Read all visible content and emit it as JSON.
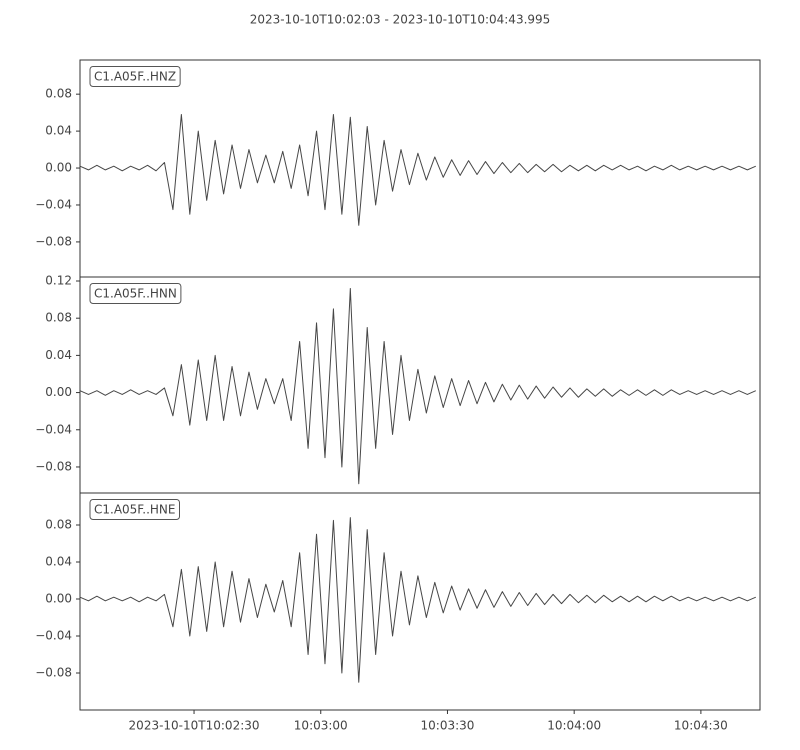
{
  "chart_data": {
    "type": "line",
    "title": "2023-10-10T10:02:03  -  2023-10-10T10:04:43.995",
    "color": "#474747",
    "xlim": [
      "2023-10-10T10:02:03",
      "2023-10-10T10:04:43.995"
    ],
    "xticks": [
      "2023-10-10T10:02:30",
      {
        "value": "2023-10-10T10:03:00",
        "label": "10:03:00"
      },
      {
        "value": "2023-10-10T10:03:30",
        "label": "10:03:30"
      },
      {
        "value": "2023-10-10T10:04:00",
        "label": "10:04:00"
      },
      {
        "value": "2023-10-10T10:04:30",
        "label": "10:04:30"
      }
    ],
    "x": [
      "2023-10-10T10:02:03",
      "2023-10-10T10:02:05",
      "2023-10-10T10:02:07",
      "2023-10-10T10:02:09",
      "2023-10-10T10:02:11",
      "2023-10-10T10:02:13",
      "2023-10-10T10:02:15",
      "2023-10-10T10:02:17",
      "2023-10-10T10:02:19",
      "2023-10-10T10:02:21",
      "2023-10-10T10:02:23",
      "2023-10-10T10:02:25",
      "2023-10-10T10:02:27",
      "2023-10-10T10:02:29",
      "2023-10-10T10:02:31",
      "2023-10-10T10:02:33",
      "2023-10-10T10:02:35",
      "2023-10-10T10:02:37",
      "2023-10-10T10:02:39",
      "2023-10-10T10:02:41",
      "2023-10-10T10:02:43",
      "2023-10-10T10:02:45",
      "2023-10-10T10:02:47",
      "2023-10-10T10:02:49",
      "2023-10-10T10:02:51",
      "2023-10-10T10:02:53",
      "2023-10-10T10:02:55",
      "2023-10-10T10:02:57",
      "2023-10-10T10:02:59",
      "2023-10-10T10:03:01",
      "2023-10-10T10:03:03",
      "2023-10-10T10:03:05",
      "2023-10-10T10:03:07",
      "2023-10-10T10:03:09",
      "2023-10-10T10:03:11",
      "2023-10-10T10:03:13",
      "2023-10-10T10:03:15",
      "2023-10-10T10:03:17",
      "2023-10-10T10:03:19",
      "2023-10-10T10:03:21",
      "2023-10-10T10:03:23",
      "2023-10-10T10:03:25",
      "2023-10-10T10:03:27",
      "2023-10-10T10:03:29",
      "2023-10-10T10:03:31",
      "2023-10-10T10:03:33",
      "2023-10-10T10:03:35",
      "2023-10-10T10:03:37",
      "2023-10-10T10:03:39",
      "2023-10-10T10:03:41",
      "2023-10-10T10:03:43",
      "2023-10-10T10:03:45",
      "2023-10-10T10:03:47",
      "2023-10-10T10:03:49",
      "2023-10-10T10:03:51",
      "2023-10-10T10:03:53",
      "2023-10-10T10:03:55",
      "2023-10-10T10:03:57",
      "2023-10-10T10:03:59",
      "2023-10-10T10:04:01",
      "2023-10-10T10:04:03",
      "2023-10-10T10:04:05",
      "2023-10-10T10:04:07",
      "2023-10-10T10:04:09",
      "2023-10-10T10:04:11",
      "2023-10-10T10:04:13",
      "2023-10-10T10:04:15",
      "2023-10-10T10:04:17",
      "2023-10-10T10:04:19",
      "2023-10-10T10:04:21",
      "2023-10-10T10:04:23",
      "2023-10-10T10:04:25",
      "2023-10-10T10:04:27",
      "2023-10-10T10:04:29",
      "2023-10-10T10:04:31",
      "2023-10-10T10:04:33",
      "2023-10-10T10:04:35",
      "2023-10-10T10:04:37",
      "2023-10-10T10:04:39",
      "2023-10-10T10:04:41",
      "2023-10-10T10:04:43"
    ],
    "panels": [
      {
        "label": "C1.A05F..HNZ",
        "ylim": [
          -0.118,
          0.117
        ],
        "yticks": [
          {
            "value": -0.08,
            "label": "−0.08"
          },
          {
            "value": -0.04,
            "label": "−0.04"
          },
          {
            "value": 0,
            "label": "0.00"
          },
          0.04,
          0.08
        ],
        "values": [
          0.002,
          -0.002,
          0.003,
          -0.002,
          0.002,
          -0.003,
          0.002,
          -0.002,
          0.003,
          -0.003,
          0.006,
          -0.045,
          0.058,
          -0.05,
          0.04,
          -0.035,
          0.03,
          -0.028,
          0.025,
          -0.022,
          0.02,
          -0.016,
          0.014,
          -0.016,
          0.018,
          -0.022,
          0.025,
          -0.03,
          0.04,
          -0.045,
          0.058,
          -0.05,
          0.055,
          -0.062,
          0.045,
          -0.04,
          0.03,
          -0.025,
          0.02,
          -0.018,
          0.016,
          -0.013,
          0.012,
          -0.01,
          0.009,
          -0.008,
          0.008,
          -0.007,
          0.007,
          -0.006,
          0.006,
          -0.005,
          0.005,
          -0.005,
          0.004,
          -0.004,
          0.004,
          -0.004,
          0.003,
          -0.003,
          0.003,
          -0.003,
          0.003,
          -0.002,
          0.003,
          -0.002,
          0.002,
          -0.003,
          0.002,
          -0.002,
          0.003,
          -0.002,
          0.002,
          -0.002,
          0.002,
          -0.002,
          0.002,
          -0.002,
          0.002,
          -0.002,
          0.002
        ]
      },
      {
        "label": "C1.A05F..HNN",
        "ylim": [
          -0.108,
          0.1243
        ],
        "yticks": [
          {
            "value": -0.08,
            "label": "−0.08"
          },
          {
            "value": -0.04,
            "label": "−0.04"
          },
          {
            "value": 0,
            "label": "0.00"
          },
          0.04,
          0.08,
          0.12
        ],
        "values": [
          0.002,
          -0.002,
          0.002,
          -0.003,
          0.002,
          -0.002,
          0.003,
          -0.002,
          0.002,
          -0.002,
          0.005,
          -0.025,
          0.03,
          -0.035,
          0.035,
          -0.03,
          0.04,
          -0.03,
          0.028,
          -0.025,
          0.022,
          -0.018,
          0.015,
          -0.012,
          0.015,
          -0.03,
          0.055,
          -0.06,
          0.075,
          -0.07,
          0.09,
          -0.08,
          0.112,
          -0.098,
          0.07,
          -0.06,
          0.055,
          -0.045,
          0.04,
          -0.03,
          0.025,
          -0.022,
          0.018,
          -0.016,
          0.015,
          -0.014,
          0.013,
          -0.012,
          0.011,
          -0.01,
          0.009,
          -0.008,
          0.008,
          -0.007,
          0.007,
          -0.006,
          0.006,
          -0.005,
          0.005,
          -0.005,
          0.004,
          -0.004,
          0.004,
          -0.004,
          0.003,
          -0.003,
          0.003,
          -0.003,
          0.003,
          -0.003,
          0.003,
          -0.002,
          0.002,
          -0.002,
          0.002,
          -0.002,
          0.002,
          -0.002,
          0.002,
          -0.002,
          0.002
        ]
      },
      {
        "label": "C1.A05F..HNE",
        "ylim": [
          -0.12,
          0.1146
        ],
        "yticks": [
          {
            "value": -0.08,
            "label": "−0.08"
          },
          {
            "value": -0.04,
            "label": "−0.04"
          },
          {
            "value": 0,
            "label": "0.00"
          },
          0.04,
          0.08
        ],
        "values": [
          0.002,
          -0.002,
          0.003,
          -0.002,
          0.002,
          -0.002,
          0.002,
          -0.003,
          0.002,
          -0.002,
          0.005,
          -0.03,
          0.032,
          -0.04,
          0.035,
          -0.035,
          0.04,
          -0.03,
          0.03,
          -0.025,
          0.022,
          -0.02,
          0.016,
          -0.014,
          0.02,
          -0.03,
          0.05,
          -0.06,
          0.07,
          -0.07,
          0.085,
          -0.08,
          0.088,
          -0.09,
          0.075,
          -0.06,
          0.05,
          -0.04,
          0.03,
          -0.028,
          0.025,
          -0.02,
          0.018,
          -0.015,
          0.014,
          -0.012,
          0.011,
          -0.01,
          0.01,
          -0.009,
          0.008,
          -0.008,
          0.007,
          -0.007,
          0.006,
          -0.006,
          0.005,
          -0.005,
          0.005,
          -0.004,
          0.004,
          -0.004,
          0.004,
          -0.003,
          0.003,
          -0.003,
          0.003,
          -0.003,
          0.003,
          -0.002,
          0.003,
          -0.002,
          0.002,
          -0.002,
          0.002,
          -0.002,
          0.002,
          -0.002,
          0.002,
          -0.002,
          0.002
        ]
      }
    ]
  }
}
